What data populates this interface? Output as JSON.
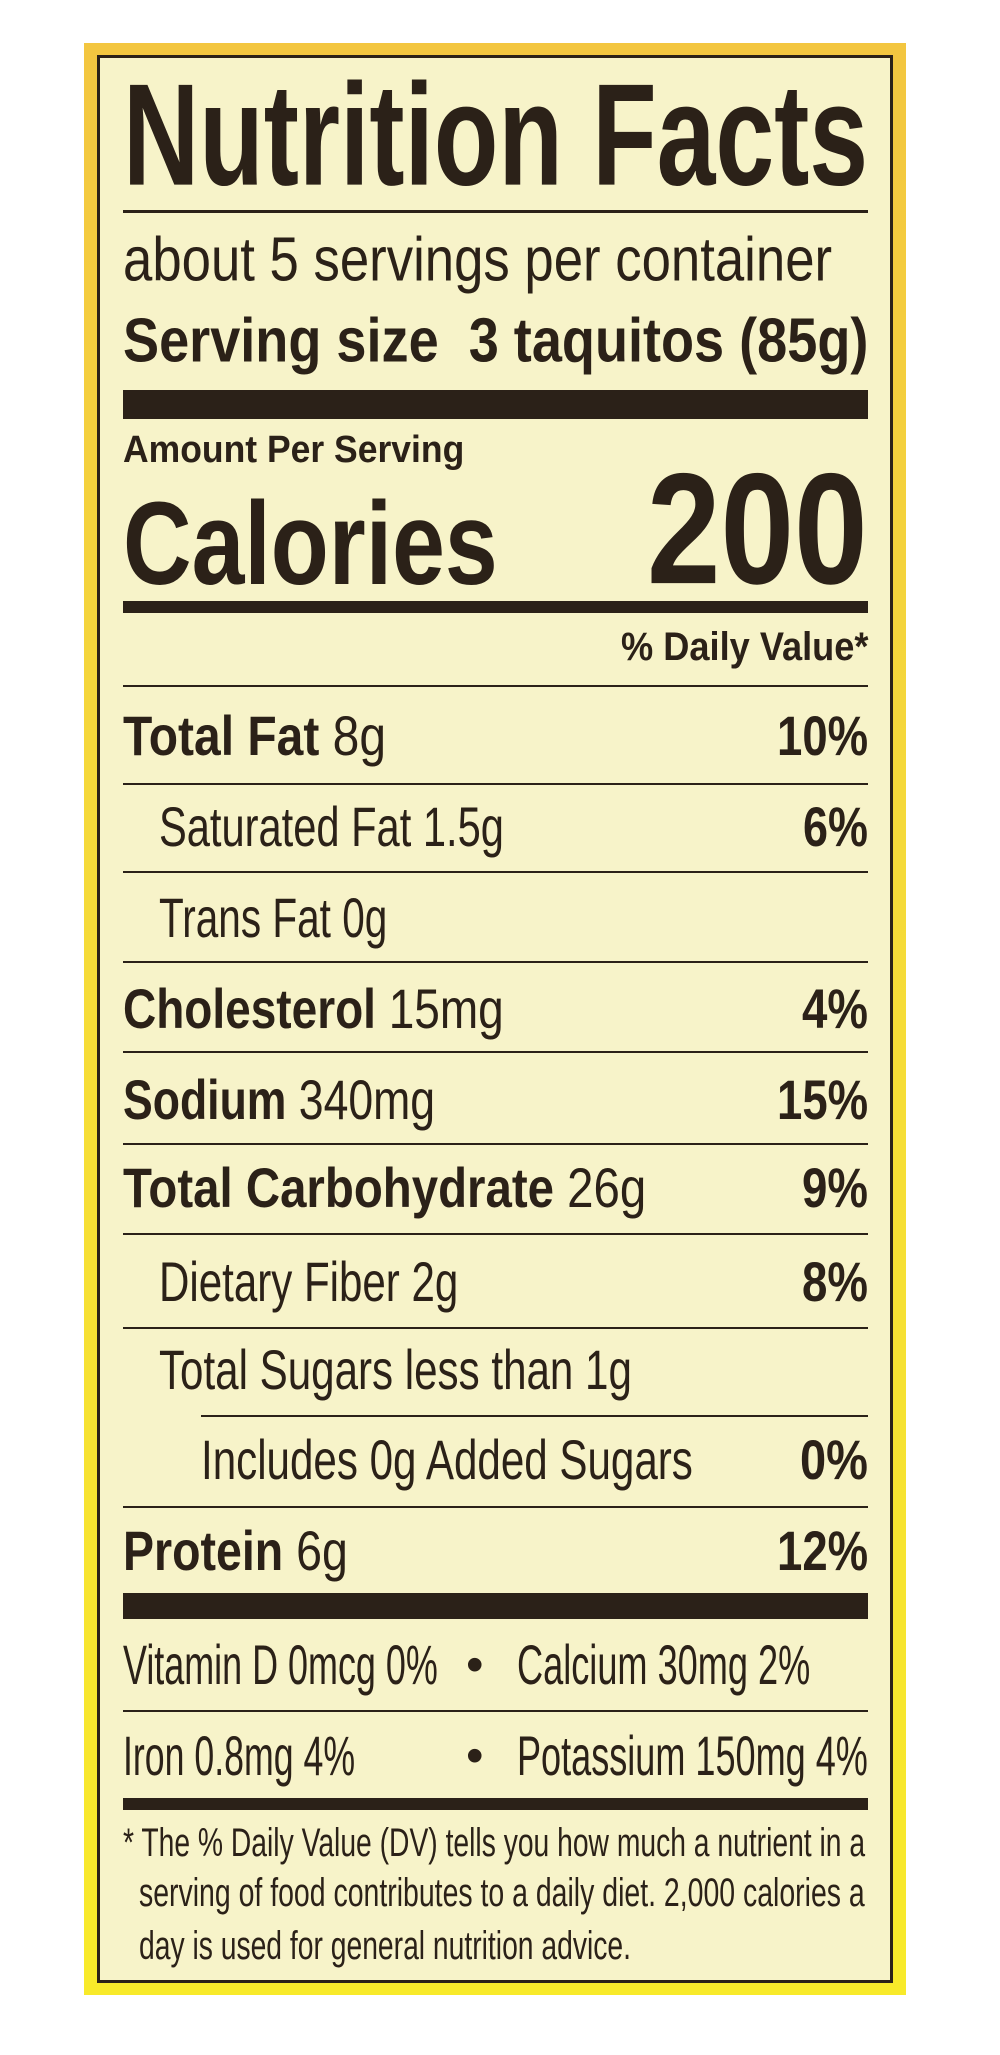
{
  "label": {
    "title": "Nutrition Facts",
    "servings_per_container": "about 5 servings per container",
    "serving_size_label": "Serving size",
    "serving_size_value": "3 taquitos (85g)",
    "amount_per_serving": "Amount Per Serving",
    "calories_label": "Calories",
    "calories_value": "200",
    "daily_value_header": "% Daily Value*",
    "nutrients": [
      {
        "name": "Total Fat",
        "amount": "8g",
        "dv": "10%"
      },
      {
        "name": "Saturated Fat",
        "amount": "1.5g",
        "dv": "6%"
      },
      {
        "name": "Trans Fat",
        "amount": "0g",
        "dv": ""
      },
      {
        "name": "Cholesterol",
        "amount": "15mg",
        "dv": "4%"
      },
      {
        "name": "Sodium",
        "amount": "340mg",
        "dv": "15%"
      },
      {
        "name": "Total Carbohydrate",
        "amount": "26g",
        "dv": "9%"
      },
      {
        "name": "Dietary Fiber",
        "amount": "2g",
        "dv": "8%"
      },
      {
        "name": "Total Sugars",
        "amount": "less than 1g",
        "dv": ""
      },
      {
        "name": "Includes 0g Added Sugars",
        "amount": "",
        "dv": "0%"
      },
      {
        "name": "Protein",
        "amount": "6g",
        "dv": "12%"
      }
    ],
    "micronutrients": [
      "Vitamin D 0mcg 0%",
      "Calcium 30mg 2%",
      "Iron 0.8mg 4%",
      "Potassium 150mg 4%"
    ],
    "bullet": "•",
    "footnote": [
      "* The % Daily Value (DV) tells you how much a nutrient in a",
      "serving of food contributes to a daily diet. 2,000 calories a",
      "day is used for general nutrition advice."
    ]
  },
  "colors": {
    "border_yellow": "#f8ea2a",
    "background": "#f7f3c9",
    "ink": "#2b2118"
  }
}
